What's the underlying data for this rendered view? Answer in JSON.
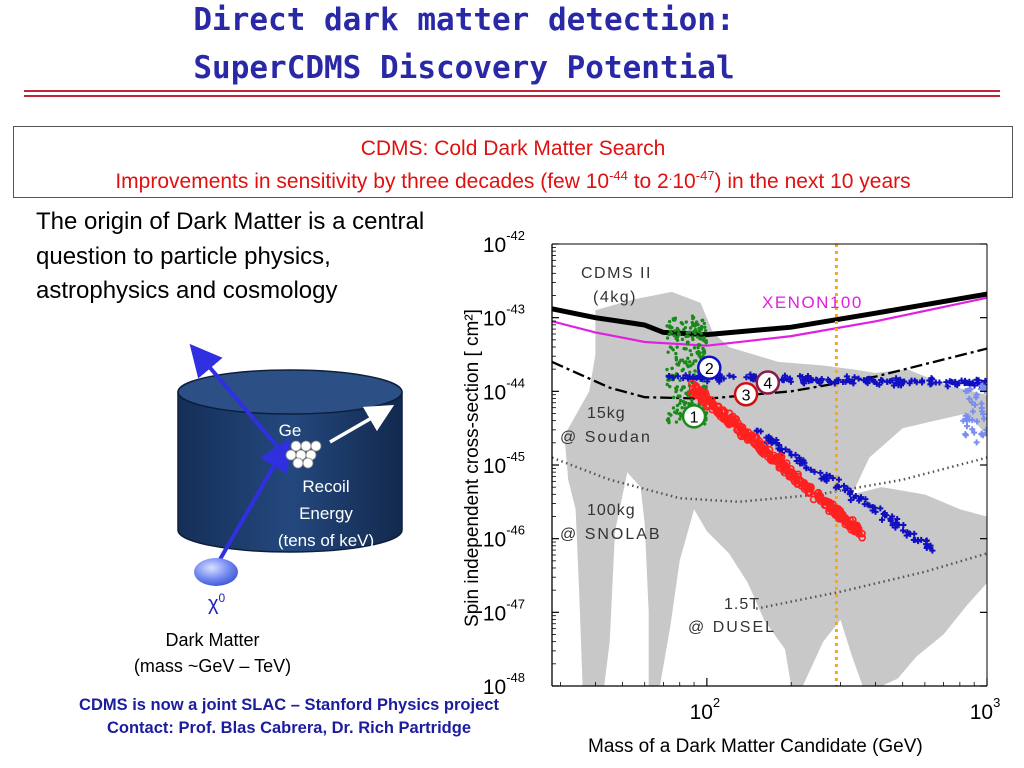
{
  "title": {
    "line1": "Direct dark matter detection:",
    "line2": "SuperCDMS Discovery Potential"
  },
  "box": {
    "line1": "CDMS:  Cold Dark Matter Search",
    "line2_a": "Improvements in sensitivity by three decades (few 10",
    "line2_sup1": "-44",
    "line2_b": " to 2",
    "line2_dot": ".",
    "line2_c": "10",
    "line2_sup2": "-47",
    "line2_d": ") in the next 10 years"
  },
  "intro_text": "The origin of Dark Matter is a central question to particle physics, astrophysics and cosmology",
  "detector": {
    "ge_label": "Ge",
    "recoil_line1": "Recoil",
    "recoil_line2": "Energy",
    "recoil_line3": "(tens of keV)",
    "particle_symbol": "χ",
    "particle_sup": "0",
    "dm_line1": "Dark Matter",
    "dm_line2": "(mass ~GeV – TeV)"
  },
  "footer": {
    "line1": "CDMS is now a joint SLAC – Stanford Physics project",
    "line2": "Contact:  Prof. Blas Cabrera, Dr. Rich Partridge"
  },
  "colors": {
    "title": "#2929a8",
    "highlight": "#e01010",
    "tank": "#1c3d6e",
    "gray_region": "#c8c8c8",
    "xenon": "#e020e0",
    "vline": "#f5a623",
    "red_points": "#ff2020",
    "green_points": "#1a8a1a",
    "blue_points": "#1010c0"
  },
  "chart_data": {
    "type": "scatter",
    "xlabel": "Mass of a Dark Matter Candidate (GeV)",
    "ylabel": "Spin independent cross-section [ cm²]",
    "x_scale": "log",
    "y_scale": "log",
    "xlim": [
      28,
      1000
    ],
    "ylim": [
      1e-48,
      1e-42
    ],
    "x_ticks": [
      {
        "base": "10",
        "exp": "2",
        "value": 100
      },
      {
        "base": "10",
        "exp": "3",
        "value": 1000
      }
    ],
    "y_ticks": [
      {
        "base": "10",
        "exp": "-42",
        "value": -42
      },
      {
        "base": "10",
        "exp": "-43",
        "value": -43
      },
      {
        "base": "10",
        "exp": "-44",
        "value": -44
      },
      {
        "base": "10",
        "exp": "-45",
        "value": -45
      },
      {
        "base": "10",
        "exp": "-46",
        "value": -46
      },
      {
        "base": "10",
        "exp": "-47",
        "value": -47
      },
      {
        "base": "10",
        "exp": "-48",
        "value": -48
      }
    ],
    "annotations": {
      "cdms2_line1": "CDMS II",
      "cdms2_line2": "(4kg)",
      "xenon": "XENON100",
      "soudan_line1": "15kg",
      "soudan_line2": "@ Soudan",
      "snolab_line1": "100kg",
      "snolab_line2": "@ SNOLAB",
      "dusel_line1": "1.5T",
      "dusel_line2": "@ DUSEL",
      "markers": [
        "1",
        "2",
        "3",
        "4"
      ]
    },
    "vertical_line_mass": 290,
    "series": {
      "cdms_ii_limit": [
        [
          28,
          -42.88
        ],
        [
          40,
          -43.0
        ],
        [
          60,
          -43.1
        ],
        [
          70,
          -43.2
        ],
        [
          100,
          -43.23
        ],
        [
          200,
          -43.13
        ],
        [
          400,
          -42.94
        ],
        [
          1000,
          -42.68
        ]
      ],
      "xenon100_limit": [
        [
          28,
          -43.05
        ],
        [
          40,
          -43.2
        ],
        [
          60,
          -43.33
        ],
        [
          100,
          -43.38
        ],
        [
          200,
          -43.25
        ],
        [
          400,
          -43.05
        ],
        [
          1000,
          -42.73
        ]
      ],
      "soudan_15kg": [
        [
          28,
          -43.6
        ],
        [
          45,
          -43.95
        ],
        [
          60,
          -44.08
        ],
        [
          100,
          -44.1
        ],
        [
          200,
          -44.0
        ],
        [
          400,
          -43.8
        ],
        [
          1000,
          -43.42
        ]
      ],
      "snolab_100kg": [
        [
          28,
          -44.9
        ],
        [
          45,
          -45.2
        ],
        [
          80,
          -45.45
        ],
        [
          130,
          -45.5
        ],
        [
          250,
          -45.4
        ],
        [
          500,
          -45.2
        ],
        [
          1000,
          -44.9
        ]
      ],
      "dusel_1_5t": [
        [
          150,
          -46.95
        ],
        [
          300,
          -46.72
        ],
        [
          600,
          -46.45
        ],
        [
          1000,
          -46.2
        ]
      ]
    }
  }
}
